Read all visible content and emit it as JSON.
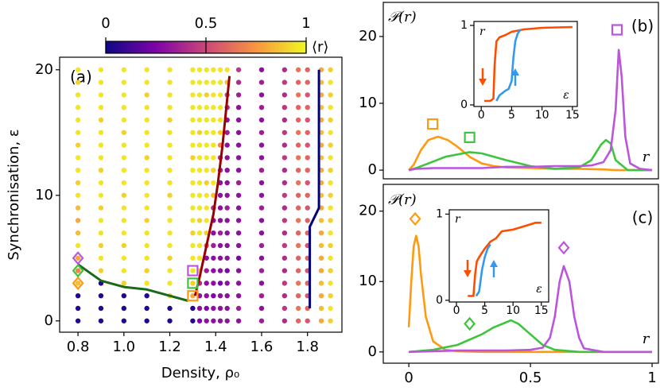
{
  "chart_data": [
    {
      "type": "scatter-grid",
      "annotation": "(a)",
      "xlabel": "Density, ρ₀",
      "ylabel": "Synchronisation, ε",
      "xlim": [
        0.72,
        1.95
      ],
      "ylim": [
        -0.9,
        21
      ],
      "xticks": [
        0.8,
        {
          "value": 1,
          "label": "1.0"
        },
        1.2,
        1.4,
        1.6,
        1.8
      ],
      "yticks": [
        0,
        10,
        20
      ],
      "colorbar": {
        "label": "⟨r⟩",
        "lim": [
          0,
          1
        ],
        "ticks": [
          0,
          0.5,
          1
        ],
        "colormap": "plasma"
      },
      "x": [
        0.8,
        0.9,
        1.0,
        1.1,
        1.2,
        1.3,
        1.33,
        1.36,
        1.39,
        1.42,
        1.45,
        1.5,
        1.6,
        1.7,
        1.76,
        1.8,
        1.86,
        1.9
      ],
      "y": [
        0,
        1,
        2,
        3,
        4,
        5,
        6,
        7,
        8,
        9,
        10,
        11,
        12,
        13,
        14,
        15,
        16,
        17,
        18,
        19,
        20
      ],
      "values": [
        [
          0.05,
          0.05,
          0.05,
          0.85,
          0.7,
          0.8,
          0.95,
          0.85,
          0.8,
          0.85,
          0.95,
          0.9,
          0.95,
          0.95,
          0.9,
          0.95,
          0.95,
          0.95,
          0.95,
          0.9,
          0.95
        ],
        [
          0.05,
          0.05,
          0.05,
          0.05,
          0.9,
          0.95,
          0.9,
          0.95,
          0.95,
          0.9,
          0.95,
          0.95,
          0.9,
          0.95,
          0.95,
          0.95,
          0.9,
          0.95,
          0.95,
          0.95,
          0.95
        ],
        [
          0.05,
          0.05,
          0.05,
          0.9,
          0.95,
          0.95,
          0.9,
          0.95,
          0.95,
          0.95,
          0.9,
          0.95,
          0.95,
          0.95,
          0.95,
          0.9,
          0.95,
          0.95,
          0.95,
          0.95,
          0.95
        ],
        [
          0.05,
          0.05,
          0.05,
          0.95,
          0.9,
          0.95,
          0.95,
          0.95,
          0.9,
          0.95,
          0.95,
          0.95,
          0.95,
          0.9,
          0.95,
          0.95,
          0.95,
          0.95,
          0.9,
          0.95,
          0.95
        ],
        [
          0.05,
          0.05,
          0.9,
          0.95,
          0.95,
          0.9,
          0.95,
          0.95,
          0.95,
          0.95,
          0.9,
          0.95,
          0.95,
          0.95,
          0.95,
          0.95,
          0.9,
          0.95,
          0.95,
          0.95,
          0.95
        ],
        [
          0.05,
          0.05,
          0.8,
          0.9,
          0.95,
          0.95,
          0.95,
          0.9,
          0.95,
          0.95,
          0.95,
          0.95,
          0.95,
          0.9,
          0.95,
          0.95,
          0.95,
          0.95,
          0.95,
          0.95,
          0.95
        ],
        [
          0.25,
          0.3,
          0.3,
          0.4,
          0.9,
          0.95,
          0.95,
          0.95,
          0.9,
          0.95,
          0.95,
          0.95,
          0.95,
          0.95,
          0.95,
          0.9,
          0.95,
          0.95,
          0.95,
          0.95,
          0.95
        ],
        [
          0.3,
          0.25,
          0.3,
          0.3,
          0.35,
          0.3,
          0.6,
          0.9,
          0.95,
          0.95,
          0.95,
          0.9,
          0.95,
          0.95,
          0.95,
          0.95,
          0.95,
          0.95,
          0.9,
          0.95,
          0.95
        ],
        [
          0.3,
          0.3,
          0.25,
          0.3,
          0.3,
          0.3,
          0.35,
          0.3,
          0.3,
          0.4,
          0.85,
          0.95,
          0.9,
          0.95,
          0.95,
          0.95,
          0.95,
          0.95,
          0.95,
          0.95,
          0.95
        ],
        [
          0.3,
          0.3,
          0.3,
          0.25,
          0.3,
          0.3,
          0.3,
          0.35,
          0.3,
          0.3,
          0.3,
          0.3,
          0.35,
          0.4,
          0.7,
          0.9,
          0.95,
          0.95,
          0.95,
          0.95,
          0.95
        ],
        [
          0.3,
          0.3,
          0.3,
          0.3,
          0.25,
          0.3,
          0.3,
          0.3,
          0.3,
          0.35,
          0.3,
          0.3,
          0.3,
          0.3,
          0.3,
          0.35,
          0.3,
          0.4,
          0.5,
          0.85,
          0.95
        ],
        [
          0.3,
          0.35,
          0.3,
          0.3,
          0.3,
          0.25,
          0.3,
          0.3,
          0.3,
          0.3,
          0.3,
          0.35,
          0.3,
          0.3,
          0.3,
          0.3,
          0.3,
          0.3,
          0.35,
          0.4,
          0.45
        ],
        [
          0.35,
          0.3,
          0.35,
          0.3,
          0.35,
          0.3,
          0.35,
          0.3,
          0.3,
          0.35,
          0.3,
          0.3,
          0.35,
          0.3,
          0.3,
          0.35,
          0.3,
          0.35,
          0.3,
          0.35,
          0.3
        ],
        [
          0.4,
          0.45,
          0.4,
          0.45,
          0.4,
          0.4,
          0.45,
          0.4,
          0.45,
          0.4,
          0.45,
          0.4,
          0.4,
          0.45,
          0.4,
          0.45,
          0.4,
          0.45,
          0.4,
          0.45,
          0.4
        ],
        [
          0.6,
          0.65,
          0.6,
          0.65,
          0.6,
          0.6,
          0.65,
          0.6,
          0.65,
          0.6,
          0.6,
          0.65,
          0.6,
          0.65,
          0.6,
          0.65,
          0.6,
          0.6,
          0.65,
          0.6,
          0.65
        ],
        [
          0.55,
          0.6,
          0.55,
          0.6,
          0.55,
          0.6,
          0.55,
          0.6,
          0.6,
          0.55,
          0.6,
          0.55,
          0.6,
          0.6,
          0.55,
          0.6,
          0.55,
          0.6,
          0.55,
          0.6,
          0.6
        ],
        [
          0.8,
          0.85,
          0.8,
          0.85,
          0.8,
          0.8,
          0.85,
          0.8,
          0.85,
          0.8,
          0.85,
          0.8,
          0.8,
          0.85,
          0.8,
          0.85,
          0.8,
          0.85,
          0.8,
          0.85,
          0.8
        ],
        [
          0.9,
          0.95,
          0.9,
          0.95,
          0.9,
          0.95,
          0.9,
          0.95,
          0.9,
          0.95,
          0.9,
          0.95,
          0.9,
          0.95,
          0.9,
          0.95,
          0.9,
          0.95,
          0.9,
          0.95,
          0.9
        ]
      ],
      "lines": [
        {
          "color": "#1a6a1a",
          "x": [
            0.8,
            0.9,
            1.0,
            1.1,
            1.2,
            1.28
          ],
          "values": [
            4.5,
            3.2,
            2.7,
            2.5,
            2,
            1.6
          ]
        },
        {
          "color": "#990000",
          "x": [
            1.31,
            1.33,
            1.36,
            1.39,
            1.41,
            1.43,
            1.46
          ],
          "values": [
            2,
            3.5,
            6,
            8.5,
            11,
            14,
            19.5
          ]
        },
        {
          "color": "#000080",
          "x": [
            1.81,
            1.81,
            1.85,
            1.85
          ],
          "values": [
            1,
            7.5,
            9,
            20
          ]
        }
      ],
      "markers": [
        {
          "shape": "diamond",
          "color": "#ff9a10",
          "x": 0.8,
          "y": 3
        },
        {
          "shape": "diamond",
          "color": "#3fc43f",
          "x": 0.8,
          "y": 4
        },
        {
          "shape": "diamond",
          "color": "#bb55dd",
          "x": 0.8,
          "y": 5
        },
        {
          "shape": "square",
          "color": "#ff9a10",
          "x": 1.3,
          "y": 2
        },
        {
          "shape": "square",
          "color": "#3fc43f",
          "x": 1.3,
          "y": 3
        },
        {
          "shape": "square",
          "color": "#bb55dd",
          "x": 1.3,
          "y": 4
        }
      ]
    },
    {
      "type": "line",
      "annotation": "(b)",
      "xlabel": "r",
      "ylabel": "𝒫(r)",
      "xlim": [
        -0.105,
        1.026
      ],
      "ylim": [
        -1.3,
        25.1
      ],
      "xticks": [],
      "yticks": [
        0,
        10,
        20
      ],
      "series": [
        {
          "color": "#ff9a10",
          "x": [
            0,
            0.02,
            0.05,
            0.08,
            0.12,
            0.16,
            0.2,
            0.25,
            0.3,
            0.35,
            0.4,
            0.5,
            0.6,
            0.7,
            0.8,
            0.85,
            0.9,
            1.0
          ],
          "values": [
            0,
            0.8,
            3,
            4.5,
            5,
            4.5,
            3.5,
            2,
            1,
            0.6,
            0.4,
            0.3,
            0.2,
            0.2,
            0.1,
            0,
            0,
            0
          ]
        },
        {
          "color": "#3fc43f",
          "x": [
            0,
            0.03,
            0.08,
            0.15,
            0.25,
            0.3,
            0.4,
            0.5,
            0.6,
            0.7,
            0.75,
            0.79,
            0.81,
            0.83,
            0.85,
            0.9,
            1.0
          ],
          "values": [
            0,
            0.3,
            1,
            2,
            2.7,
            2.5,
            1.5,
            0.6,
            0.2,
            0.4,
            1.5,
            3.8,
            4.5,
            4,
            1.5,
            0,
            0
          ]
        },
        {
          "color": "#bb55dd",
          "x": [
            0,
            0.03,
            0.1,
            0.2,
            0.3,
            0.4,
            0.5,
            0.6,
            0.7,
            0.75,
            0.8,
            0.83,
            0.85,
            0.863,
            0.875,
            0.89,
            0.91,
            0.95,
            1.0
          ],
          "values": [
            0,
            0.2,
            0.3,
            0.3,
            0.3,
            0.5,
            0.5,
            0.6,
            0.6,
            0.7,
            1.2,
            3,
            9,
            18,
            14,
            5,
            1,
            0.2,
            0
          ]
        }
      ],
      "markers": [
        {
          "shape": "square",
          "color": "#ff9a10",
          "x": 0.098,
          "y": 6.9
        },
        {
          "shape": "square",
          "color": "#3fc43f",
          "x": 0.25,
          "y": 4.9
        },
        {
          "shape": "square",
          "color": "#bb55dd",
          "x": 0.856,
          "y": 21
        }
      ]
    },
    {
      "type": "line",
      "xlabel": "ε",
      "ylabel": "r",
      "xlim": [
        -1.2,
        15.8
      ],
      "ylim": [
        -0.02,
        1.05
      ],
      "xticks": [
        0,
        5,
        10,
        15
      ],
      "yticks": [
        0,
        1
      ],
      "series": [
        {
          "color": "#ff4d00",
          "x": [
            0.5,
            1,
            1.5,
            2,
            2.2,
            2.5,
            3,
            4,
            5,
            7,
            10,
            15
          ],
          "values": [
            0.05,
            0.05,
            0.05,
            0.08,
            0.5,
            0.8,
            0.85,
            0.88,
            0.92,
            0.95,
            0.97,
            0.98
          ]
        },
        {
          "color": "#3399ee",
          "x": [
            2.5,
            3,
            3.5,
            4,
            4.5,
            5,
            5.3,
            5.6,
            6,
            6.5
          ],
          "values": [
            0.05,
            0.12,
            0.15,
            0.18,
            0.2,
            0.3,
            0.6,
            0.8,
            0.9,
            0.95
          ]
        }
      ]
    },
    {
      "type": "line",
      "annotation": "(c)",
      "xlabel": "r",
      "ylabel": "𝒫(r)",
      "xlim": [
        -0.105,
        1.026
      ],
      "ylim": [
        -1.6,
        23.8
      ],
      "xticks": [
        0,
        0.5,
        1
      ],
      "yticks": [
        0,
        10,
        20
      ],
      "series": [
        {
          "color": "#ff9a10",
          "x": [
            0,
            0.01,
            0.02,
            0.03,
            0.04,
            0.05,
            0.07,
            0.1,
            0.15,
            0.2,
            0.3,
            0.5,
            1.0
          ],
          "values": [
            3.5,
            10,
            15,
            16.5,
            15,
            11,
            5,
            1.5,
            0.3,
            0.1,
            0,
            0,
            0
          ]
        },
        {
          "color": "#3fc43f",
          "x": [
            0,
            0.1,
            0.2,
            0.3,
            0.35,
            0.4,
            0.42,
            0.45,
            0.5,
            0.55,
            0.6,
            0.7,
            1.0
          ],
          "values": [
            0,
            0.3,
            1,
            2.5,
            3.5,
            4.2,
            4.5,
            4,
            2.5,
            1,
            0.3,
            0,
            0
          ]
        },
        {
          "color": "#bb55dd",
          "x": [
            0,
            0.2,
            0.4,
            0.5,
            0.55,
            0.58,
            0.6,
            0.62,
            0.637,
            0.66,
            0.68,
            0.7,
            0.72,
            0.8,
            1.0
          ],
          "values": [
            0,
            0.2,
            0.2,
            0.3,
            0.6,
            2,
            5,
            10,
            12.2,
            10,
            5,
            2,
            0.5,
            0,
            0
          ]
        }
      ],
      "markers": [
        {
          "shape": "diamond",
          "color": "#ff9a10",
          "x": 0.026,
          "y": 18.9
        },
        {
          "shape": "diamond",
          "color": "#3fc43f",
          "x": 0.25,
          "y": 4
        },
        {
          "shape": "diamond",
          "color": "#bb55dd",
          "x": 0.637,
          "y": 14.8
        }
      ]
    },
    {
      "type": "line",
      "xlabel": "ε",
      "ylabel": "r",
      "xlim": [
        -1.27,
        16.3
      ],
      "ylim": [
        -0.02,
        1.05
      ],
      "xticks": [
        0,
        5,
        10,
        15
      ],
      "yticks": [
        0,
        1
      ],
      "series": [
        {
          "color": "#ff4d00",
          "x": [
            2,
            2.5,
            3,
            3.3,
            3.6,
            4,
            5,
            6,
            7,
            8,
            10,
            12,
            14,
            15
          ],
          "values": [
            0.05,
            0.05,
            0.05,
            0.3,
            0.45,
            0.5,
            0.6,
            0.68,
            0.72,
            0.8,
            0.82,
            0.86,
            0.9,
            0.9
          ]
        },
        {
          "color": "#3399ee",
          "x": [
            3.5,
            4,
            4.5,
            5,
            5.5,
            6
          ],
          "values": [
            0.05,
            0.1,
            0.35,
            0.5,
            0.6,
            0.65
          ]
        }
      ]
    }
  ]
}
